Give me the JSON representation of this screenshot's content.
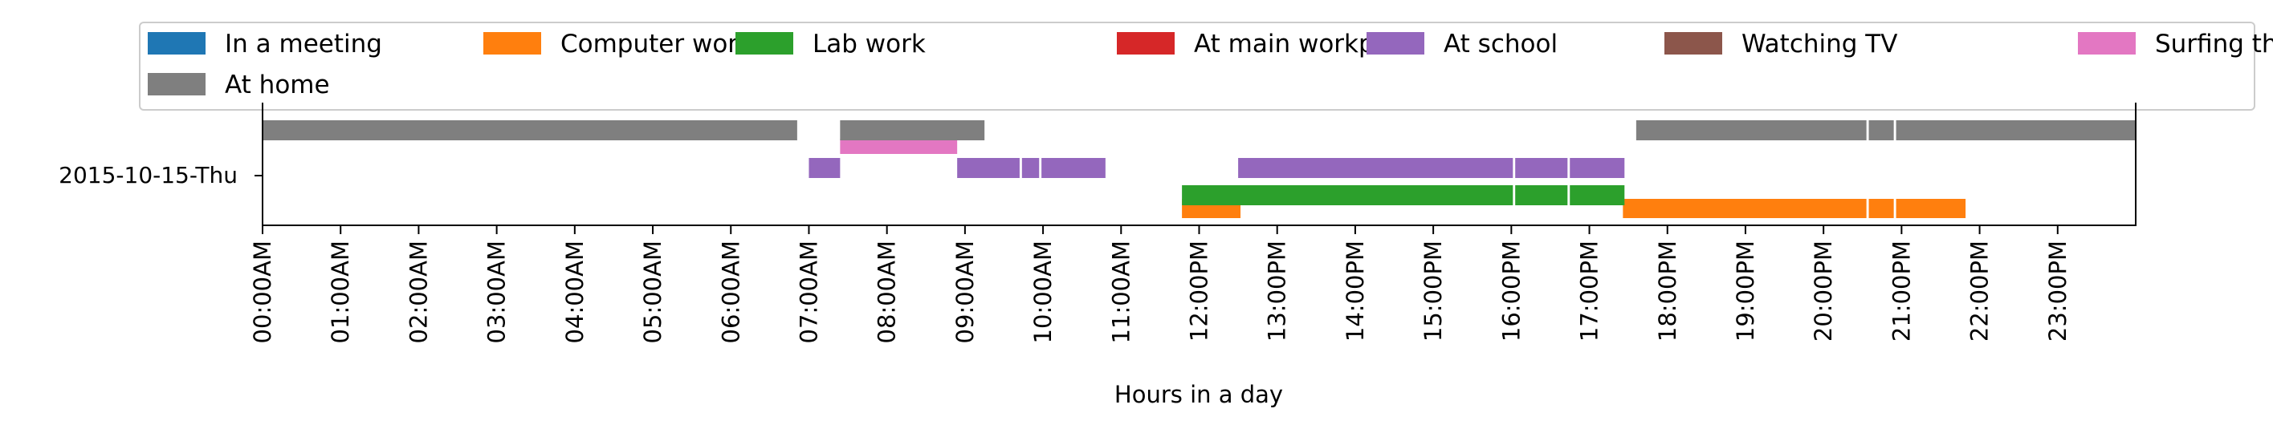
{
  "chart_data": {
    "type": "timeline",
    "title": "",
    "xlabel": "Hours in a day",
    "ylabel": "",
    "category_label": "2015-10-15-Thu",
    "xlim": [
      0,
      24
    ],
    "xticks": [
      {
        "hour": 0,
        "label": "00:00AM"
      },
      {
        "hour": 1,
        "label": "01:00AM"
      },
      {
        "hour": 2,
        "label": "02:00AM"
      },
      {
        "hour": 3,
        "label": "03:00AM"
      },
      {
        "hour": 4,
        "label": "04:00AM"
      },
      {
        "hour": 5,
        "label": "05:00AM"
      },
      {
        "hour": 6,
        "label": "06:00AM"
      },
      {
        "hour": 7,
        "label": "07:00AM"
      },
      {
        "hour": 8,
        "label": "08:00AM"
      },
      {
        "hour": 9,
        "label": "09:00AM"
      },
      {
        "hour": 10,
        "label": "10:00AM"
      },
      {
        "hour": 11,
        "label": "11:00AM"
      },
      {
        "hour": 12,
        "label": "12:00PM"
      },
      {
        "hour": 13,
        "label": "13:00PM"
      },
      {
        "hour": 14,
        "label": "14:00PM"
      },
      {
        "hour": 15,
        "label": "15:00PM"
      },
      {
        "hour": 16,
        "label": "16:00PM"
      },
      {
        "hour": 17,
        "label": "17:00PM"
      },
      {
        "hour": 18,
        "label": "18:00PM"
      },
      {
        "hour": 19,
        "label": "19:00PM"
      },
      {
        "hour": 20,
        "label": "20:00PM"
      },
      {
        "hour": 21,
        "label": "21:00PM"
      },
      {
        "hour": 22,
        "label": "22:00PM"
      },
      {
        "hour": 23,
        "label": "23:00PM"
      }
    ],
    "legend_position": "top",
    "series": [
      {
        "name": "In a meeting",
        "color": "#1f77b4",
        "intervals": []
      },
      {
        "name": "Computer work",
        "color": "#ff7f0e",
        "intervals": [
          [
            11.78,
            12.53
          ],
          [
            17.43,
            20.55
          ],
          [
            20.58,
            20.9
          ],
          [
            20.93,
            21.82
          ]
        ]
      },
      {
        "name": "Lab work",
        "color": "#2ca02c",
        "intervals": [
          [
            11.78,
            16.02
          ],
          [
            16.05,
            16.72
          ],
          [
            16.75,
            17.45
          ]
        ]
      },
      {
        "name": "At main workplace",
        "color": "#d62728",
        "intervals": []
      },
      {
        "name": "At school",
        "color": "#9467bd",
        "intervals": [
          [
            7.0,
            7.4
          ],
          [
            8.9,
            9.7
          ],
          [
            9.73,
            9.95
          ],
          [
            9.98,
            10.8
          ],
          [
            12.5,
            16.02
          ],
          [
            16.05,
            16.72
          ],
          [
            16.75,
            17.45
          ]
        ]
      },
      {
        "name": "Watching TV",
        "color": "#8c564b",
        "intervals": []
      },
      {
        "name": "Surfing the internet",
        "color": "#e377c2",
        "intervals": [
          [
            7.4,
            8.9
          ]
        ]
      },
      {
        "name": "At home",
        "color": "#7f7f7f",
        "intervals": [
          [
            0.0,
            6.85
          ],
          [
            7.4,
            9.25
          ],
          [
            17.6,
            20.55
          ],
          [
            20.58,
            20.9
          ],
          [
            20.93,
            24.0
          ]
        ]
      }
    ]
  }
}
